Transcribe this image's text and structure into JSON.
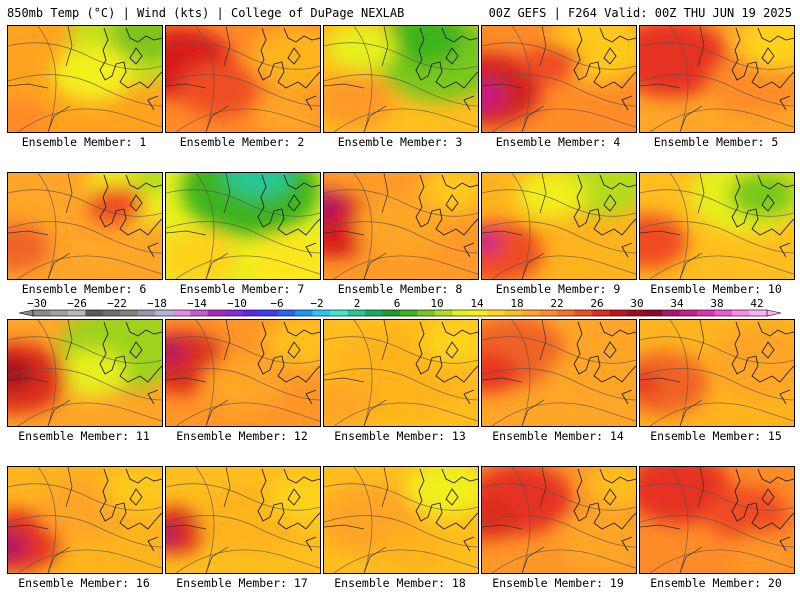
{
  "header": {
    "left": "850mb Temp (°C) | Wind (kts) | College of DuPage NEXLAB",
    "right": "00Z GEFS | F264 Valid: 00Z THU JUN 19 2025"
  },
  "colorbar": {
    "ticks": [
      "-30",
      "-26",
      "-22",
      "-18",
      "-14",
      "-10",
      "-6",
      "-2",
      "2",
      "6",
      "10",
      "14",
      "18",
      "22",
      "26",
      "30",
      "34",
      "38",
      "42"
    ],
    "colors": [
      "#8a8a8a",
      "#a0a0a0",
      "#b8b8b8",
      "#5a5a5a",
      "#6e6e6e",
      "#828282",
      "#9696aa",
      "#b4b4d2",
      "#e08ce6",
      "#c85ad2",
      "#aa28be",
      "#8c28dc",
      "#5a28e6",
      "#3c3cf0",
      "#2864f0",
      "#1e96f0",
      "#28c8f0",
      "#3ce6d2",
      "#28c896",
      "#14aa64",
      "#1e9a32",
      "#3cb41e",
      "#78c81e",
      "#b4dc1e",
      "#e6f01e",
      "#fff014",
      "#ffd71e",
      "#ffbe1e",
      "#ffa528",
      "#ff8c28",
      "#fa6e28",
      "#f04b23",
      "#dc2d1e",
      "#be141e",
      "#a00a1e",
      "#8c0a28",
      "#aa1464",
      "#c81e8c",
      "#dc32b4",
      "#ec5ad2",
      "#f88ce6",
      "#ffb4f0"
    ]
  },
  "members": [
    {
      "label": "Ensemble Member: 1",
      "base": "#ffa31f",
      "blobs": [
        [
          0.8,
          0.15,
          0.55,
          "#c6e01f"
        ],
        [
          0.55,
          0.45,
          0.35,
          "#f4f01a"
        ],
        [
          0.05,
          0.9,
          0.3,
          "#ff8a28"
        ],
        [
          0.92,
          0.08,
          0.35,
          "#7fc41e"
        ]
      ]
    },
    {
      "label": "Ensemble Member: 2",
      "base": "#ff8a28",
      "blobs": [
        [
          0.1,
          0.35,
          0.45,
          "#d81c1e"
        ],
        [
          0.35,
          0.6,
          0.35,
          "#f04e24"
        ],
        [
          0.85,
          0.3,
          0.4,
          "#ffb41e"
        ],
        [
          0.8,
          0.85,
          0.3,
          "#ffa528"
        ]
      ]
    },
    {
      "label": "Ensemble Member: 3",
      "base": "#ffbe1e",
      "blobs": [
        [
          0.75,
          0.3,
          0.55,
          "#78c81e"
        ],
        [
          0.65,
          0.1,
          0.35,
          "#3cb41e"
        ],
        [
          0.2,
          0.7,
          0.35,
          "#ff9a28"
        ],
        [
          0.25,
          0.2,
          0.3,
          "#e6f01e"
        ]
      ]
    },
    {
      "label": "Ensemble Member: 4",
      "base": "#ff8c28",
      "blobs": [
        [
          0.05,
          0.6,
          0.45,
          "#d02220"
        ],
        [
          0.0,
          0.65,
          0.18,
          "#c81e8c"
        ],
        [
          0.75,
          0.2,
          0.45,
          "#ffc81e"
        ],
        [
          0.45,
          0.35,
          0.25,
          "#f04b23"
        ]
      ]
    },
    {
      "label": "Ensemble Member: 5",
      "base": "#ffa528",
      "blobs": [
        [
          0.2,
          0.3,
          0.5,
          "#e63220"
        ],
        [
          0.75,
          0.55,
          0.4,
          "#ff8c28"
        ],
        [
          0.9,
          0.15,
          0.35,
          "#ffd21e"
        ]
      ]
    },
    {
      "label": "Ensemble Member: 6",
      "base": "#ffa528",
      "blobs": [
        [
          0.85,
          0.15,
          0.45,
          "#f0f01e"
        ],
        [
          0.7,
          0.3,
          0.25,
          "#f04b23"
        ],
        [
          0.05,
          0.7,
          0.3,
          "#f06426"
        ],
        [
          0.95,
          0.05,
          0.2,
          "#b4dc1e"
        ]
      ]
    },
    {
      "label": "Ensemble Member: 7",
      "base": "#e6f01e",
      "blobs": [
        [
          0.55,
          0.15,
          0.6,
          "#3cb41e"
        ],
        [
          0.6,
          0.0,
          0.3,
          "#28c896"
        ],
        [
          0.2,
          0.8,
          0.35,
          "#ffd21e"
        ],
        [
          0.8,
          0.85,
          0.35,
          "#ffe61e"
        ]
      ]
    },
    {
      "label": "Ensemble Member: 8",
      "base": "#ff9a28",
      "blobs": [
        [
          0.05,
          0.5,
          0.4,
          "#d81c1e"
        ],
        [
          0.0,
          0.3,
          0.18,
          "#aa1464"
        ],
        [
          0.85,
          0.15,
          0.3,
          "#ffc81e"
        ],
        [
          0.5,
          0.5,
          0.4,
          "#ffa528"
        ]
      ]
    },
    {
      "label": "Ensemble Member: 9",
      "base": "#ffb41e",
      "blobs": [
        [
          0.8,
          0.1,
          0.4,
          "#b4dc1e"
        ],
        [
          0.45,
          0.2,
          0.3,
          "#f0f01e"
        ],
        [
          0.1,
          0.75,
          0.4,
          "#f04b23"
        ],
        [
          0.02,
          0.65,
          0.15,
          "#c81e8c"
        ]
      ]
    },
    {
      "label": "Ensemble Member: 10",
      "base": "#ffbe1e",
      "blobs": [
        [
          0.7,
          0.2,
          0.5,
          "#e6f01e"
        ],
        [
          0.8,
          0.2,
          0.3,
          "#78c81e"
        ],
        [
          0.05,
          0.65,
          0.35,
          "#f04b23"
        ]
      ]
    },
    {
      "label": "Ensemble Member: 11",
      "base": "#ffa528",
      "blobs": [
        [
          0.75,
          0.25,
          0.55,
          "#9ed21e"
        ],
        [
          0.55,
          0.5,
          0.3,
          "#e6f01e"
        ],
        [
          0.05,
          0.55,
          0.45,
          "#dc2d1e"
        ],
        [
          0.02,
          0.5,
          0.2,
          "#a00a1e"
        ]
      ]
    },
    {
      "label": "Ensemble Member: 12",
      "base": "#ff9628",
      "blobs": [
        [
          0.1,
          0.4,
          0.4,
          "#dc2d1e"
        ],
        [
          0.02,
          0.3,
          0.15,
          "#aa1464"
        ],
        [
          0.9,
          0.2,
          0.35,
          "#ffbe1e"
        ],
        [
          0.5,
          0.6,
          0.35,
          "#ffa528"
        ]
      ]
    },
    {
      "label": "Ensemble Member: 13",
      "base": "#ffbe1e",
      "blobs": [
        [
          0.5,
          0.5,
          0.6,
          "#ffb41e"
        ],
        [
          0.1,
          0.8,
          0.3,
          "#ffa528"
        ],
        [
          0.85,
          0.2,
          0.3,
          "#ffd21e"
        ]
      ]
    },
    {
      "label": "Ensemble Member: 14",
      "base": "#ffa528",
      "blobs": [
        [
          0.2,
          0.3,
          0.45,
          "#f06426"
        ],
        [
          0.75,
          0.6,
          0.45,
          "#ffa528"
        ],
        [
          0.05,
          0.5,
          0.25,
          "#e63220"
        ]
      ]
    },
    {
      "label": "Ensemble Member: 15",
      "base": "#ffb41e",
      "blobs": [
        [
          0.15,
          0.6,
          0.4,
          "#f06426"
        ],
        [
          0.8,
          0.4,
          0.45,
          "#ffa528"
        ],
        [
          0.02,
          0.6,
          0.15,
          "#e63220"
        ]
      ]
    },
    {
      "label": "Ensemble Member: 16",
      "base": "#ffb41e",
      "blobs": [
        [
          0.05,
          0.7,
          0.4,
          "#e63220"
        ],
        [
          0.0,
          0.75,
          0.18,
          "#aa1464"
        ],
        [
          0.5,
          0.4,
          0.4,
          "#ffa528"
        ],
        [
          0.85,
          0.2,
          0.3,
          "#ffc81e"
        ]
      ]
    },
    {
      "label": "Ensemble Member: 17",
      "base": "#ffbe1e",
      "blobs": [
        [
          0.05,
          0.6,
          0.3,
          "#dc2d1e"
        ],
        [
          0.0,
          0.65,
          0.12,
          "#aa1464"
        ],
        [
          0.55,
          0.5,
          0.45,
          "#ffb41e"
        ],
        [
          0.9,
          0.3,
          0.3,
          "#ffd21e"
        ]
      ]
    },
    {
      "label": "Ensemble Member: 18",
      "base": "#ffbe1e",
      "blobs": [
        [
          0.3,
          0.5,
          0.45,
          "#ffa528"
        ],
        [
          0.8,
          0.2,
          0.35,
          "#f0f01e"
        ],
        [
          0.6,
          0.8,
          0.3,
          "#ffb41e"
        ]
      ]
    },
    {
      "label": "Ensemble Member: 19",
      "base": "#ff9628",
      "blobs": [
        [
          0.25,
          0.3,
          0.45,
          "#e63220"
        ],
        [
          0.8,
          0.7,
          0.4,
          "#ffa528"
        ],
        [
          0.05,
          0.5,
          0.25,
          "#dc2d1e"
        ],
        [
          0.9,
          0.15,
          0.3,
          "#ffbe1e"
        ]
      ]
    },
    {
      "label": "Ensemble Member: 20",
      "base": "#ff8c28",
      "blobs": [
        [
          0.25,
          0.2,
          0.45,
          "#e63220"
        ],
        [
          0.7,
          0.45,
          0.35,
          "#f04b23"
        ],
        [
          0.8,
          0.85,
          0.3,
          "#ff9628"
        ]
      ]
    }
  ]
}
